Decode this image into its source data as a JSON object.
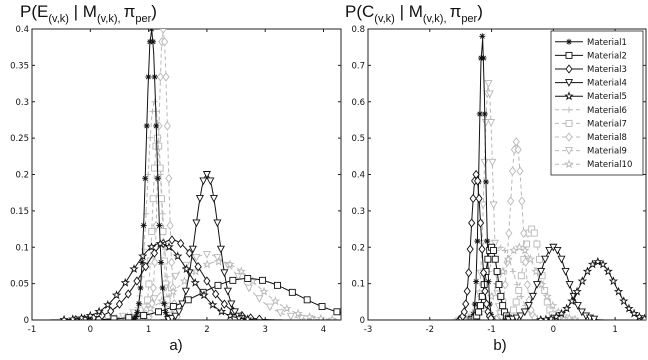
{
  "chart_data": [
    {
      "type": "line",
      "panel_label": "a)",
      "title_main": "P(E",
      "title_sub1": "(v,k)",
      "title_mid": " | M",
      "title_sub2": "(v,k), ",
      "title_pi": "π",
      "title_sub3": "per",
      "title_end": ")",
      "xlim": [
        -1,
        4.3
      ],
      "ylim": [
        0,
        0.4
      ],
      "xticks": [
        -1,
        0,
        1,
        2,
        3,
        4
      ],
      "yticks": [
        0,
        0.05,
        0.1,
        0.15,
        0.2,
        0.25,
        0.3,
        0.35,
        0.4
      ],
      "xticklabels": [
        "-1",
        "0",
        "1",
        "2",
        "3",
        "4"
      ],
      "yticklabels": [
        "0",
        "0.05",
        "0.1",
        "0.15",
        "0.2",
        "0.25",
        "0.3",
        "0.35",
        "0.4"
      ],
      "series": [
        {
          "name": "Material1",
          "mu": 1.05,
          "sigma": 0.09,
          "peak": 0.4
        },
        {
          "name": "Material2",
          "mu": 2.7,
          "sigma": 0.85,
          "peak": 0.057
        },
        {
          "name": "Material3",
          "mu": 1.4,
          "sigma": 0.5,
          "peak": 0.11
        },
        {
          "name": "Material4",
          "mu": 2.0,
          "sigma": 0.2,
          "peak": 0.2
        },
        {
          "name": "Material5",
          "mu": 1.2,
          "sigma": 0.5,
          "peak": 0.105
        },
        {
          "name": "Material6",
          "mu": 1.1,
          "sigma": 0.12,
          "peak": 0.3
        },
        {
          "name": "Material7",
          "mu": 1.15,
          "sigma": 0.08,
          "peak": 0.25
        },
        {
          "name": "Material8",
          "mu": 1.25,
          "sigma": 0.08,
          "peak": 0.4
        },
        {
          "name": "Material9",
          "mu": 2.0,
          "sigma": 0.6,
          "peak": 0.09
        },
        {
          "name": "Material10",
          "mu": 2.2,
          "sigma": 0.65,
          "peak": 0.08
        }
      ]
    },
    {
      "type": "line",
      "panel_label": "b)",
      "title_main": "P(C",
      "title_sub1": "(v,k)",
      "title_mid": " | M",
      "title_sub2": "(v,k), ",
      "title_pi": "π",
      "title_sub3": "per",
      "title_end": ")",
      "xlim": [
        -3,
        1.5
      ],
      "ylim": [
        0,
        0.8
      ],
      "xticks": [
        -3,
        -2,
        -1,
        0,
        1
      ],
      "yticks": [
        0,
        0.1,
        0.2,
        0.3,
        0.4,
        0.5,
        0.6,
        0.7,
        0.8
      ],
      "xticklabels": [
        "-3",
        "-2",
        "-1",
        "0",
        "1"
      ],
      "yticklabels": [
        "0",
        "0.1",
        "0.2",
        "0.3",
        "0.4",
        "0.5",
        "0.6",
        "0.7",
        "0.8"
      ],
      "series": [
        {
          "name": "Material1",
          "mu": -1.15,
          "sigma": 0.05,
          "peak": 0.78
        },
        {
          "name": "Material2",
          "mu": -1.0,
          "sigma": 0.1,
          "peak": 0.2
        },
        {
          "name": "Material3",
          "mu": -1.25,
          "sigma": 0.08,
          "peak": 0.4
        },
        {
          "name": "Material4",
          "mu": 0.0,
          "sigma": 0.22,
          "peak": 0.2
        },
        {
          "name": "Material5",
          "mu": 0.72,
          "sigma": 0.28,
          "peak": 0.16
        },
        {
          "name": "Material6",
          "mu": -0.85,
          "sigma": 0.22,
          "peak": 0.2
        },
        {
          "name": "Material7",
          "mu": -0.35,
          "sigma": 0.14,
          "peak": 0.25
        },
        {
          "name": "Material8",
          "mu": -0.6,
          "sigma": 0.1,
          "peak": 0.49
        },
        {
          "name": "Material9",
          "mu": -1.05,
          "sigma": 0.07,
          "peak": 0.65
        },
        {
          "name": "Material10",
          "mu": -0.55,
          "sigma": 0.3,
          "peak": 0.2
        }
      ]
    }
  ],
  "legend": {
    "entries": [
      "Material1",
      "Material2",
      "Material3",
      "Material4",
      "Material5",
      "Material6",
      "Material7",
      "Material8",
      "Material9",
      "Material10"
    ],
    "placement": "top-right of panel b"
  },
  "styles": {
    "Material1": {
      "color": "#111111",
      "dash": "none",
      "marker": "asterisk"
    },
    "Material2": {
      "color": "#111111",
      "dash": "none",
      "marker": "square"
    },
    "Material3": {
      "color": "#111111",
      "dash": "none",
      "marker": "diamond"
    },
    "Material4": {
      "color": "#111111",
      "dash": "none",
      "marker": "triangle-down"
    },
    "Material5": {
      "color": "#111111",
      "dash": "none",
      "marker": "pentagram"
    },
    "Material6": {
      "color": "#b8b8b8",
      "dash": "4,3",
      "marker": "plus"
    },
    "Material7": {
      "color": "#b8b8b8",
      "dash": "4,3",
      "marker": "square"
    },
    "Material8": {
      "color": "#b8b8b8",
      "dash": "4,3",
      "marker": "diamond"
    },
    "Material9": {
      "color": "#b8b8b8",
      "dash": "4,3",
      "marker": "triangle-down"
    },
    "Material10": {
      "color": "#b8b8b8",
      "dash": "4,3",
      "marker": "pentagram"
    }
  }
}
